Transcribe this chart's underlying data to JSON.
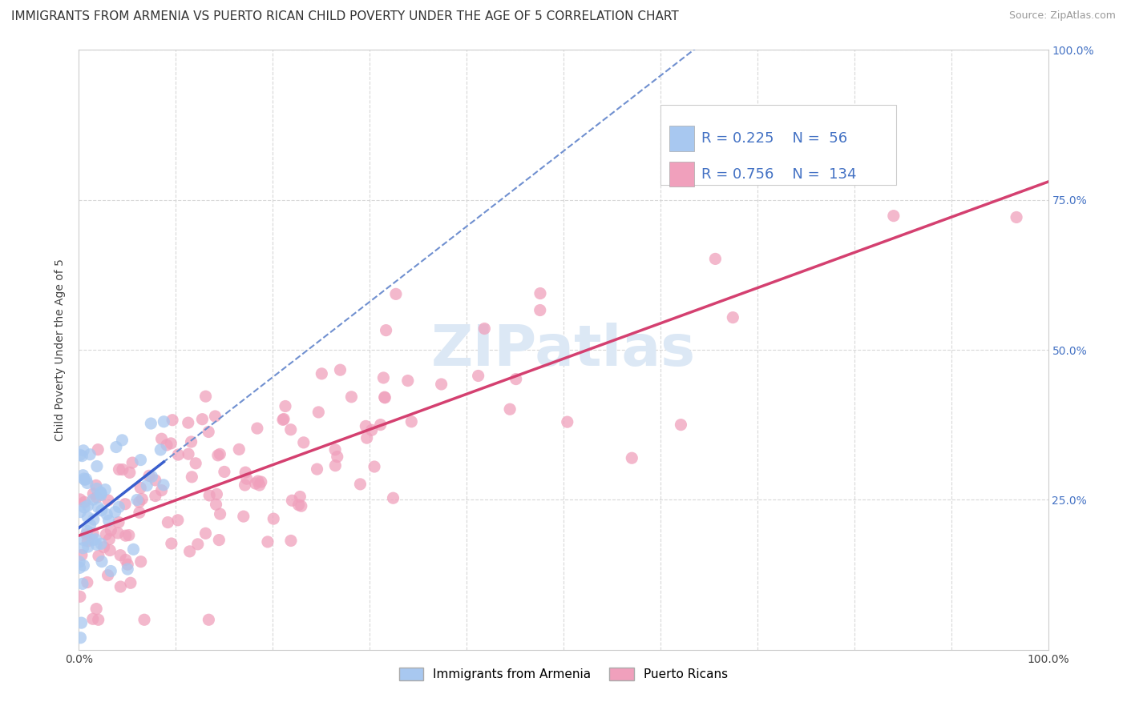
{
  "title": "IMMIGRANTS FROM ARMENIA VS PUERTO RICAN CHILD POVERTY UNDER THE AGE OF 5 CORRELATION CHART",
  "source": "Source: ZipAtlas.com",
  "ylabel": "Child Poverty Under the Age of 5",
  "x_min": 0.0,
  "x_max": 1.0,
  "y_min": 0.0,
  "y_max": 1.0,
  "legend_entries": [
    "Immigrants from Armenia",
    "Puerto Ricans"
  ],
  "armenia_color": "#a8c8f0",
  "puerto_rico_color": "#f0a0bc",
  "armenia_line_color": "#3a5fcd",
  "puerto_rico_line_color": "#d44070",
  "dashed_line_color": "#7090d0",
  "watermark_color": "#dce8f5",
  "r_armenia": 0.225,
  "n_armenia": 56,
  "r_puerto_rico": 0.756,
  "n_puerto_rico": 134,
  "background_color": "#ffffff",
  "grid_color": "#d8d8d8",
  "title_fontsize": 11,
  "axis_label_fontsize": 10,
  "tick_fontsize": 10,
  "legend_fontsize": 13,
  "annotation_color": "#4472c4",
  "right_tick_color": "#4472c4",
  "armenia_seed": 42,
  "pr_seed": 99
}
